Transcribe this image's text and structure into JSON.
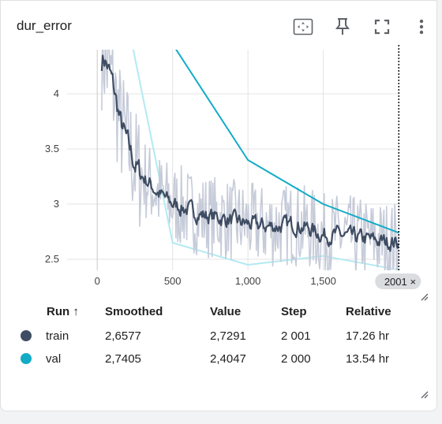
{
  "card": {
    "title": "dur_error"
  },
  "toolbar": {
    "fit_icon": "fit-domain-icon",
    "pin_icon": "pin-icon",
    "fullscreen_icon": "fullscreen-icon",
    "more_icon": "more-vert-icon"
  },
  "chart_data": {
    "type": "line",
    "xlim": [
      -200,
      2010
    ],
    "ylim": [
      2.4,
      4.4
    ],
    "x_ticks": [
      0,
      500,
      1000,
      1500
    ],
    "x_tick_labels": [
      "0",
      "500",
      "1,000",
      "1,500"
    ],
    "y_ticks": [
      2.5,
      3,
      3.5,
      4
    ],
    "y_tick_labels": [
      "2.5",
      "3",
      "3.5",
      "4"
    ],
    "grid": true,
    "hover_step_label": "2001",
    "hover_close": "×",
    "series": [
      {
        "name": "train",
        "color": "#3f4d63",
        "raw_color": "#c6cbd9",
        "x": [
          30,
          100,
          150,
          200,
          250,
          300,
          350,
          400,
          500,
          600,
          700,
          800,
          900,
          1000,
          1100,
          1200,
          1300,
          1400,
          1500,
          1600,
          1700,
          1800,
          1900,
          2001
        ],
        "smoothed": [
          4.4,
          4.1,
          3.75,
          3.55,
          3.35,
          3.25,
          3.18,
          3.1,
          3.0,
          2.95,
          2.9,
          2.88,
          2.85,
          2.82,
          2.8,
          2.8,
          2.82,
          2.78,
          2.72,
          2.72,
          2.7,
          2.68,
          2.66,
          2.6577
        ]
      },
      {
        "name": "val",
        "color": "#12acc6",
        "raw_color": "#b3eaf2",
        "x": [
          0,
          500,
          1000,
          1500,
          2000
        ],
        "smoothed": [
          5.8,
          4.45,
          3.4,
          3.0,
          2.7405
        ],
        "raw": [
          6.0,
          2.65,
          2.45,
          2.53,
          2.4047
        ]
      }
    ]
  },
  "table": {
    "headers": {
      "run": "Run ↑",
      "smoothed": "Smoothed",
      "value": "Value",
      "step": "Step",
      "relative": "Relative"
    },
    "rows": [
      {
        "run": "train",
        "color": "#3f4d63",
        "smoothed": "2,6577",
        "value": "2,7291",
        "step": "2 001",
        "relative": "17.26 hr"
      },
      {
        "run": "val",
        "color": "#12acc6",
        "smoothed": "2,7405",
        "value": "2,4047",
        "step": "2 000",
        "relative": "13.54 hr"
      }
    ]
  }
}
